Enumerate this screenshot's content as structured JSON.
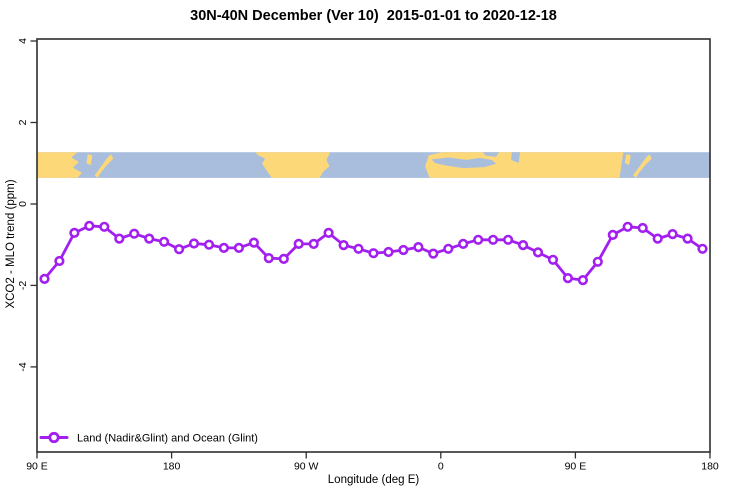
{
  "chart_data": {
    "type": "line",
    "title": "30N-40N December (Ver 10)  2015-01-01 to 2020-12-18",
    "xlabel": "Longitude (deg E)",
    "ylabel": "XCO2 - MLO trend (ppm)",
    "xlim": [
      90,
      540
    ],
    "ylim": [
      -6.09,
      4.05
    ],
    "x_ticks": [
      {
        "deg": 90,
        "label": "90 E"
      },
      {
        "deg": 180,
        "label": "180"
      },
      {
        "deg": 270,
        "label": "90 W"
      },
      {
        "deg": 360,
        "label": "0"
      },
      {
        "deg": 450,
        "label": "90 E"
      },
      {
        "deg": 540,
        "label": "180"
      }
    ],
    "y_ticks": [
      {
        "v": 4,
        "label": "4"
      },
      {
        "v": 2,
        "label": "2"
      },
      {
        "v": 0,
        "label": "0"
      },
      {
        "v": -2,
        "label": "-2"
      },
      {
        "v": -4,
        "label": "-4"
      }
    ],
    "grid": false,
    "legend": {
      "position": "bottom-left",
      "label": "Land (Nadir&Glint) and Ocean (Glint)"
    },
    "x_start_deg": 95,
    "x_step_deg": 10,
    "series": [
      {
        "name": "Land (Nadir&Glint) and Ocean (Glint)",
        "color": "#a21fef",
        "marker": "open-circle",
        "values": [
          -1.84,
          -1.4,
          -0.71,
          -0.54,
          -0.56,
          -0.85,
          -0.73,
          -0.85,
          -0.93,
          -1.11,
          -0.97,
          -1.0,
          -1.08,
          -1.08,
          -0.95,
          -1.33,
          -1.35,
          -0.98,
          -0.98,
          -0.71,
          -1.01,
          -1.1,
          -1.21,
          -1.18,
          -1.13,
          -1.06,
          -1.22,
          -1.1,
          -0.98,
          -0.88,
          -0.88,
          -0.88,
          -1.01,
          -1.19,
          -1.37,
          -1.82,
          -1.87,
          -1.42,
          -0.76,
          -0.56,
          -0.59,
          -0.85,
          -0.74,
          -0.85,
          -1.1
        ]
      }
    ],
    "map_band": {
      "description": "world coastline strip for 30N-40N drawn across plot",
      "top_ppm": 1.27,
      "bottom_ppm": 0.64,
      "ocean_color": "#a9bedd",
      "land_color": "#fdd878",
      "land_polygons": [
        {
          "name": "east-asia-1",
          "pts": [
            [
              90,
              0
            ],
            [
              117,
              0
            ],
            [
              113,
              0.2
            ],
            [
              118,
              0.38
            ],
            [
              114,
              0.6
            ],
            [
              120,
              0.8
            ],
            [
              117,
              1
            ],
            [
              90,
              1
            ]
          ]
        },
        {
          "name": "korea-1",
          "pts": [
            [
              124,
              0.08
            ],
            [
              127,
              0.12
            ],
            [
              126,
              0.5
            ],
            [
              123,
              0.42
            ]
          ]
        },
        {
          "name": "japan-1",
          "pts": [
            [
              128.5,
              0.9
            ],
            [
              133,
              0.55
            ],
            [
              137,
              0.22
            ],
            [
              139.5,
              0.08
            ],
            [
              141,
              0.25
            ],
            [
              136,
              0.55
            ],
            [
              132,
              0.85
            ],
            [
              130.5,
              1
            ]
          ]
        },
        {
          "name": "north-america",
          "pts": [
            [
              236,
              0
            ],
            [
              286,
              0
            ],
            [
              283.5,
              0.3
            ],
            [
              285.5,
              0.55
            ],
            [
              281,
              0.78
            ],
            [
              279,
              1
            ],
            [
              247,
              1
            ],
            [
              244,
              0.75
            ],
            [
              240.5,
              0.45
            ],
            [
              242.5,
              0.25
            ],
            [
              238,
              0.12
            ]
          ]
        },
        {
          "name": "eurasia-africa",
          "pts": [
            [
              352,
              0.12
            ],
            [
              361,
              0
            ],
            [
              482,
              0
            ],
            [
              479.5,
              1
            ],
            [
              352.5,
              1
            ],
            [
              349.5,
              0.55
            ]
          ]
        },
        {
          "name": "sicily-island",
          "pts": [
            [
              374,
              0.38
            ],
            [
              377,
              0.36
            ],
            [
              376.5,
              0.5
            ],
            [
              373.5,
              0.48
            ]
          ]
        },
        {
          "name": "cyprus-island",
          "pts": [
            [
              391,
              0.4
            ],
            [
              394,
              0.38
            ],
            [
              393,
              0.5
            ],
            [
              390.5,
              0.48
            ]
          ]
        },
        {
          "name": "korea-2",
          "pts": [
            [
              484,
              0.08
            ],
            [
              487,
              0.12
            ],
            [
              486,
              0.5
            ],
            [
              483,
              0.42
            ]
          ]
        },
        {
          "name": "japan-2",
          "pts": [
            [
              488.5,
              0.9
            ],
            [
              493,
              0.55
            ],
            [
              497,
              0.22
            ],
            [
              499.5,
              0.08
            ],
            [
              501,
              0.25
            ],
            [
              496,
              0.55
            ],
            [
              492,
              0.85
            ],
            [
              490.5,
              1
            ]
          ]
        }
      ],
      "water_polygons": [
        {
          "name": "mediterranean-sea",
          "pts": [
            [
              354,
              0.28
            ],
            [
              365,
              0.2
            ],
            [
              377,
              0.3
            ],
            [
              386,
              0.22
            ],
            [
              394,
              0.3
            ],
            [
              397,
              0.45
            ],
            [
              389,
              0.58
            ],
            [
              375,
              0.62
            ],
            [
              362,
              0.5
            ],
            [
              356,
              0.42
            ]
          ]
        },
        {
          "name": "black-sea",
          "pts": [
            [
              388,
              0
            ],
            [
              399,
              0
            ],
            [
              397,
              0.18
            ],
            [
              390,
              0.14
            ]
          ]
        },
        {
          "name": "caspian-sea",
          "pts": [
            [
              407.5,
              0
            ],
            [
              413,
              0
            ],
            [
              412,
              0.42
            ],
            [
              407,
              0.3
            ]
          ]
        }
      ]
    },
    "frame_color": "#2e2e2e",
    "text_color": "#000000"
  }
}
